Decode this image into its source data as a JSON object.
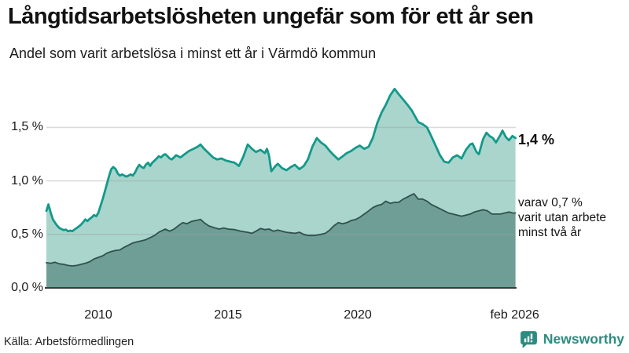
{
  "header": {
    "title": "Långtidsarbetslösheten ungefär som för ett år sen",
    "subtitle": "Andel som varit arbetslösa i minst ett år i Värmdö kommun"
  },
  "chart_data": {
    "type": "area",
    "title": "Långtidsarbetslösheten ungefär som för ett år sen",
    "subtitle": "Andel som varit arbetslösa i minst ett år i Värmdö kommun",
    "unit": "%",
    "grid": true,
    "x_axis": {
      "range": [
        2008.0,
        2026.08
      ],
      "ticks": [
        {
          "t": 2010,
          "label": "2010"
        },
        {
          "t": 2015,
          "label": "2015"
        },
        {
          "t": 2020,
          "label": "2020"
        },
        {
          "t": 2026.05,
          "label": "feb 2026"
        }
      ]
    },
    "y_axis": {
      "range": [
        0,
        1.9
      ],
      "ticks": [
        {
          "v": 0.0,
          "label": "0,0 %"
        },
        {
          "v": 0.5,
          "label": "0,5 %"
        },
        {
          "v": 1.0,
          "label": "1,0 %"
        },
        {
          "v": 1.5,
          "label": "1,5 %"
        }
      ]
    },
    "style": {
      "grid_color": "#9aa0a0",
      "grid_opacity": 0.38,
      "baseline_color": "#3a3a3a"
    },
    "annotations": {
      "total_end_label": "1,4 %",
      "secondary_lines": [
        "varav 0,7 %",
        "varit utan arbete",
        "minst två år"
      ]
    },
    "series": [
      {
        "id": "minst-ett-ar",
        "name": "Andel arbetslösa minst ett år",
        "color": "#13998a",
        "fill": "#a9d5cd",
        "stroke_width": 2.8,
        "end_value": 1.4,
        "points": [
          [
            2008.0,
            0.72
          ],
          [
            2008.08,
            0.78
          ],
          [
            2008.17,
            0.7
          ],
          [
            2008.25,
            0.64
          ],
          [
            2008.33,
            0.61
          ],
          [
            2008.42,
            0.58
          ],
          [
            2008.5,
            0.56
          ],
          [
            2008.58,
            0.55
          ],
          [
            2008.67,
            0.54
          ],
          [
            2008.75,
            0.545
          ],
          [
            2008.83,
            0.53
          ],
          [
            2008.92,
            0.535
          ],
          [
            2009.0,
            0.53
          ],
          [
            2009.08,
            0.545
          ],
          [
            2009.17,
            0.56
          ],
          [
            2009.25,
            0.575
          ],
          [
            2009.33,
            0.59
          ],
          [
            2009.42,
            0.615
          ],
          [
            2009.5,
            0.64
          ],
          [
            2009.58,
            0.625
          ],
          [
            2009.67,
            0.645
          ],
          [
            2009.75,
            0.66
          ],
          [
            2009.83,
            0.68
          ],
          [
            2009.92,
            0.67
          ],
          [
            2010.0,
            0.7
          ],
          [
            2010.08,
            0.76
          ],
          [
            2010.17,
            0.83
          ],
          [
            2010.25,
            0.9
          ],
          [
            2010.33,
            0.97
          ],
          [
            2010.42,
            1.05
          ],
          [
            2010.5,
            1.11
          ],
          [
            2010.58,
            1.13
          ],
          [
            2010.67,
            1.11
          ],
          [
            2010.75,
            1.07
          ],
          [
            2010.83,
            1.05
          ],
          [
            2010.92,
            1.06
          ],
          [
            2011.0,
            1.05
          ],
          [
            2011.08,
            1.04
          ],
          [
            2011.17,
            1.05
          ],
          [
            2011.25,
            1.06
          ],
          [
            2011.33,
            1.05
          ],
          [
            2011.42,
            1.08
          ],
          [
            2011.5,
            1.12
          ],
          [
            2011.58,
            1.15
          ],
          [
            2011.67,
            1.13
          ],
          [
            2011.75,
            1.12
          ],
          [
            2011.83,
            1.15
          ],
          [
            2011.92,
            1.17
          ],
          [
            2012.0,
            1.14
          ],
          [
            2012.08,
            1.17
          ],
          [
            2012.17,
            1.19
          ],
          [
            2012.25,
            1.21
          ],
          [
            2012.33,
            1.23
          ],
          [
            2012.42,
            1.22
          ],
          [
            2012.5,
            1.24
          ],
          [
            2012.58,
            1.25
          ],
          [
            2012.67,
            1.23
          ],
          [
            2012.75,
            1.21
          ],
          [
            2012.83,
            1.2
          ],
          [
            2012.92,
            1.22
          ],
          [
            2013.0,
            1.24
          ],
          [
            2013.17,
            1.22
          ],
          [
            2013.33,
            1.25
          ],
          [
            2013.5,
            1.28
          ],
          [
            2013.67,
            1.3
          ],
          [
            2013.83,
            1.32
          ],
          [
            2013.94,
            1.34
          ],
          [
            2014.08,
            1.3
          ],
          [
            2014.25,
            1.26
          ],
          [
            2014.42,
            1.22
          ],
          [
            2014.58,
            1.2
          ],
          [
            2014.75,
            1.21
          ],
          [
            2014.92,
            1.19
          ],
          [
            2015.08,
            1.18
          ],
          [
            2015.25,
            1.17
          ],
          [
            2015.42,
            1.14
          ],
          [
            2015.58,
            1.22
          ],
          [
            2015.76,
            1.34
          ],
          [
            2015.92,
            1.3
          ],
          [
            2016.08,
            1.27
          ],
          [
            2016.25,
            1.29
          ],
          [
            2016.42,
            1.26
          ],
          [
            2016.5,
            1.3
          ],
          [
            2016.58,
            1.24
          ],
          [
            2016.67,
            1.09
          ],
          [
            2016.83,
            1.14
          ],
          [
            2016.92,
            1.16
          ],
          [
            2017.08,
            1.12
          ],
          [
            2017.25,
            1.1
          ],
          [
            2017.42,
            1.13
          ],
          [
            2017.58,
            1.15
          ],
          [
            2017.75,
            1.11
          ],
          [
            2017.92,
            1.14
          ],
          [
            2018.08,
            1.2
          ],
          [
            2018.25,
            1.32
          ],
          [
            2018.42,
            1.4
          ],
          [
            2018.58,
            1.36
          ],
          [
            2018.75,
            1.33
          ],
          [
            2018.92,
            1.28
          ],
          [
            2019.08,
            1.24
          ],
          [
            2019.25,
            1.2
          ],
          [
            2019.42,
            1.23
          ],
          [
            2019.58,
            1.26
          ],
          [
            2019.75,
            1.28
          ],
          [
            2019.92,
            1.31
          ],
          [
            2020.08,
            1.33
          ],
          [
            2020.25,
            1.3
          ],
          [
            2020.42,
            1.32
          ],
          [
            2020.58,
            1.4
          ],
          [
            2020.75,
            1.54
          ],
          [
            2020.92,
            1.64
          ],
          [
            2021.08,
            1.71
          ],
          [
            2021.25,
            1.8
          ],
          [
            2021.42,
            1.86
          ],
          [
            2021.58,
            1.81
          ],
          [
            2021.75,
            1.76
          ],
          [
            2021.92,
            1.71
          ],
          [
            2022.08,
            1.66
          ],
          [
            2022.17,
            1.62
          ],
          [
            2022.33,
            1.55
          ],
          [
            2022.5,
            1.53
          ],
          [
            2022.67,
            1.5
          ],
          [
            2022.83,
            1.42
          ],
          [
            2023.0,
            1.33
          ],
          [
            2023.17,
            1.24
          ],
          [
            2023.33,
            1.18
          ],
          [
            2023.5,
            1.17
          ],
          [
            2023.67,
            1.22
          ],
          [
            2023.83,
            1.24
          ],
          [
            2024.0,
            1.21
          ],
          [
            2024.17,
            1.29
          ],
          [
            2024.33,
            1.34
          ],
          [
            2024.42,
            1.35
          ],
          [
            2024.58,
            1.27
          ],
          [
            2024.67,
            1.25
          ],
          [
            2024.83,
            1.39
          ],
          [
            2024.96,
            1.45
          ],
          [
            2025.08,
            1.42
          ],
          [
            2025.21,
            1.4
          ],
          [
            2025.33,
            1.36
          ],
          [
            2025.5,
            1.43
          ],
          [
            2025.58,
            1.47
          ],
          [
            2025.71,
            1.41
          ],
          [
            2025.83,
            1.38
          ],
          [
            2025.96,
            1.42
          ],
          [
            2026.08,
            1.4
          ]
        ]
      },
      {
        "id": "minst-tva-ar",
        "name": "varav utan arbete minst två år",
        "color": "#30524d",
        "fill": "#6f9e96",
        "stroke_width": 1.8,
        "end_value": 0.7,
        "points": [
          [
            2008.0,
            0.235
          ],
          [
            2008.17,
            0.23
          ],
          [
            2008.33,
            0.24
          ],
          [
            2008.5,
            0.225
          ],
          [
            2008.67,
            0.22
          ],
          [
            2008.83,
            0.21
          ],
          [
            2009.0,
            0.205
          ],
          [
            2009.17,
            0.21
          ],
          [
            2009.33,
            0.22
          ],
          [
            2009.5,
            0.23
          ],
          [
            2009.67,
            0.245
          ],
          [
            2009.83,
            0.27
          ],
          [
            2010.0,
            0.285
          ],
          [
            2010.17,
            0.3
          ],
          [
            2010.33,
            0.325
          ],
          [
            2010.5,
            0.34
          ],
          [
            2010.67,
            0.35
          ],
          [
            2010.83,
            0.355
          ],
          [
            2011.0,
            0.38
          ],
          [
            2011.17,
            0.4
          ],
          [
            2011.33,
            0.42
          ],
          [
            2011.5,
            0.43
          ],
          [
            2011.67,
            0.44
          ],
          [
            2011.83,
            0.45
          ],
          [
            2012.0,
            0.47
          ],
          [
            2012.17,
            0.49
          ],
          [
            2012.33,
            0.52
          ],
          [
            2012.5,
            0.54
          ],
          [
            2012.58,
            0.55
          ],
          [
            2012.75,
            0.53
          ],
          [
            2012.92,
            0.55
          ],
          [
            2013.08,
            0.58
          ],
          [
            2013.25,
            0.61
          ],
          [
            2013.42,
            0.6
          ],
          [
            2013.58,
            0.62
          ],
          [
            2013.75,
            0.63
          ],
          [
            2013.94,
            0.64
          ],
          [
            2014.08,
            0.61
          ],
          [
            2014.25,
            0.58
          ],
          [
            2014.5,
            0.56
          ],
          [
            2014.67,
            0.55
          ],
          [
            2014.83,
            0.56
          ],
          [
            2015.0,
            0.55
          ],
          [
            2015.25,
            0.545
          ],
          [
            2015.5,
            0.53
          ],
          [
            2015.75,
            0.52
          ],
          [
            2015.92,
            0.51
          ],
          [
            2016.08,
            0.53
          ],
          [
            2016.25,
            0.555
          ],
          [
            2016.42,
            0.545
          ],
          [
            2016.58,
            0.55
          ],
          [
            2016.75,
            0.53
          ],
          [
            2016.92,
            0.54
          ],
          [
            2017.08,
            0.53
          ],
          [
            2017.25,
            0.52
          ],
          [
            2017.42,
            0.515
          ],
          [
            2017.58,
            0.51
          ],
          [
            2017.75,
            0.52
          ],
          [
            2017.92,
            0.5
          ],
          [
            2018.08,
            0.49
          ],
          [
            2018.33,
            0.49
          ],
          [
            2018.58,
            0.5
          ],
          [
            2018.75,
            0.51
          ],
          [
            2018.92,
            0.54
          ],
          [
            2019.08,
            0.58
          ],
          [
            2019.25,
            0.61
          ],
          [
            2019.42,
            0.6
          ],
          [
            2019.58,
            0.61
          ],
          [
            2019.75,
            0.63
          ],
          [
            2019.92,
            0.64
          ],
          [
            2020.08,
            0.66
          ],
          [
            2020.25,
            0.69
          ],
          [
            2020.42,
            0.72
          ],
          [
            2020.58,
            0.75
          ],
          [
            2020.75,
            0.77
          ],
          [
            2020.92,
            0.78
          ],
          [
            2021.08,
            0.81
          ],
          [
            2021.25,
            0.79
          ],
          [
            2021.42,
            0.8
          ],
          [
            2021.58,
            0.8
          ],
          [
            2021.75,
            0.83
          ],
          [
            2021.92,
            0.85
          ],
          [
            2022.08,
            0.87
          ],
          [
            2022.17,
            0.88
          ],
          [
            2022.33,
            0.83
          ],
          [
            2022.5,
            0.83
          ],
          [
            2022.67,
            0.81
          ],
          [
            2022.83,
            0.78
          ],
          [
            2023.0,
            0.76
          ],
          [
            2023.17,
            0.74
          ],
          [
            2023.33,
            0.72
          ],
          [
            2023.5,
            0.7
          ],
          [
            2023.67,
            0.69
          ],
          [
            2023.83,
            0.68
          ],
          [
            2024.0,
            0.67
          ],
          [
            2024.17,
            0.68
          ],
          [
            2024.33,
            0.69
          ],
          [
            2024.5,
            0.71
          ],
          [
            2024.67,
            0.72
          ],
          [
            2024.83,
            0.73
          ],
          [
            2025.0,
            0.72
          ],
          [
            2025.17,
            0.69
          ],
          [
            2025.33,
            0.69
          ],
          [
            2025.5,
            0.69
          ],
          [
            2025.67,
            0.7
          ],
          [
            2025.83,
            0.71
          ],
          [
            2025.96,
            0.7
          ],
          [
            2026.08,
            0.7
          ]
        ]
      }
    ]
  },
  "footer": {
    "source": "Källa: Arbetsförmedlingen",
    "brand": "Newsworthy",
    "brand_color": "#2e8b80"
  }
}
